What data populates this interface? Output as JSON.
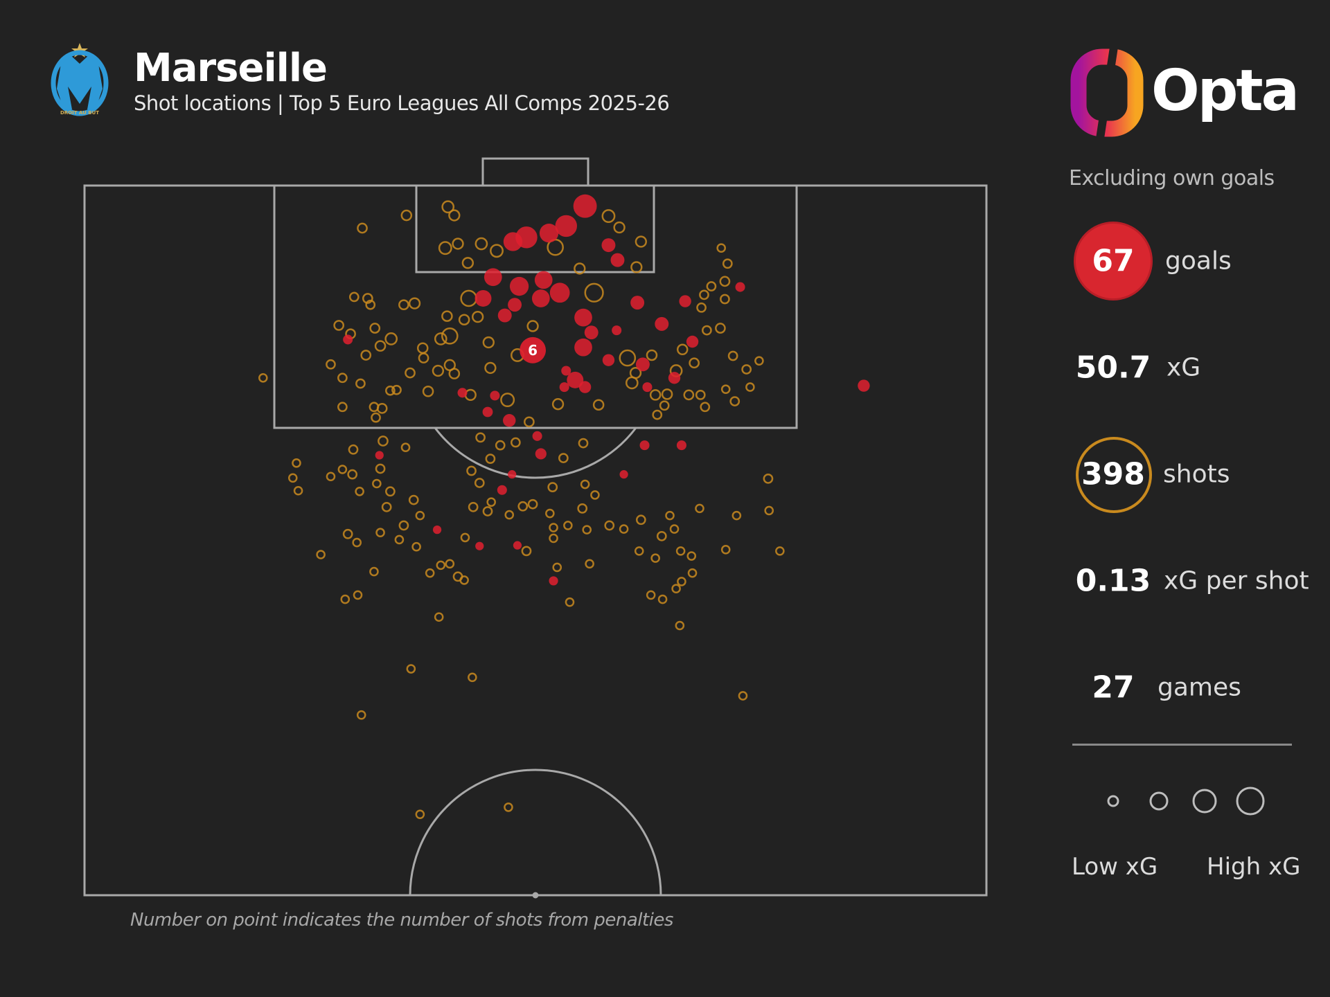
{
  "header": {
    "team": "Marseille",
    "subtitle": "Shot locations | Top 5 Euro Leagues All Comps 2025-26",
    "crest_motto": "DROIT AU BUT",
    "brand": "Opta"
  },
  "panel": {
    "note": "Excluding own goals",
    "stats": {
      "goals": {
        "value": "67",
        "label": "goals"
      },
      "xg": {
        "value": "50.7",
        "label": "xG"
      },
      "shots": {
        "value": "398",
        "label": "shots"
      },
      "xg_per_shot": {
        "value": "0.13",
        "label": "xG per shot"
      },
      "games": {
        "value": "27",
        "label": "games"
      }
    },
    "legend": {
      "low": "Low xG",
      "high": "High xG"
    }
  },
  "footnote": "Number on point indicates the number of shots from penalties",
  "colors": {
    "background": "#222222",
    "goal": "#e0202f",
    "shot": "#c98a1e",
    "lines": "#a9a9a9"
  },
  "chart_data": {
    "type": "scatter",
    "title": "Marseille shot locations",
    "coordinate_system": "half pitch, x = % of pitch width from left touchline, y = % of half-length from goal line",
    "xlim": [
      0,
      100
    ],
    "ylim": [
      0,
      100
    ],
    "size_encodes": "xG",
    "penalty": {
      "x": 49.7,
      "y": 23.2,
      "xg": 0.78,
      "count": "6",
      "outcome": "goal"
    },
    "goals": [
      [
        55.5,
        2.9,
        0.6
      ],
      [
        53.4,
        5.7,
        0.5
      ],
      [
        49.0,
        7.3,
        0.5
      ],
      [
        47.5,
        7.9,
        0.35
      ],
      [
        51.5,
        6.7,
        0.35
      ],
      [
        58.1,
        8.4,
        0.15
      ],
      [
        59.1,
        10.5,
        0.15
      ],
      [
        45.3,
        12.9,
        0.3
      ],
      [
        48.2,
        14.2,
        0.35
      ],
      [
        50.9,
        13.3,
        0.3
      ],
      [
        52.7,
        15.1,
        0.4
      ],
      [
        50.6,
        15.9,
        0.3
      ],
      [
        44.2,
        15.9,
        0.25
      ],
      [
        47.7,
        16.8,
        0.15
      ],
      [
        46.6,
        18.3,
        0.15
      ],
      [
        61.3,
        16.5,
        0.15
      ],
      [
        66.6,
        16.3,
        0.1
      ],
      [
        72.7,
        14.3,
        0.05
      ],
      [
        64.0,
        19.5,
        0.15
      ],
      [
        55.3,
        18.6,
        0.3
      ],
      [
        56.2,
        20.7,
        0.15
      ],
      [
        59.0,
        20.4,
        0.05
      ],
      [
        29.2,
        21.7,
        0.05
      ],
      [
        67.4,
        22.0,
        0.1
      ],
      [
        55.3,
        22.8,
        0.3
      ],
      [
        58.1,
        24.6,
        0.1
      ],
      [
        61.9,
        25.2,
        0.15
      ],
      [
        53.4,
        26.1,
        0.05
      ],
      [
        65.4,
        27.1,
        0.1
      ],
      [
        54.4,
        27.4,
        0.25
      ],
      [
        53.2,
        28.4,
        0.05
      ],
      [
        55.5,
        28.4,
        0.1
      ],
      [
        62.4,
        28.4,
        0.05
      ],
      [
        41.9,
        29.2,
        0.05
      ],
      [
        45.5,
        29.6,
        0.05
      ],
      [
        44.7,
        31.9,
        0.06
      ],
      [
        47.1,
        33.1,
        0.12
      ],
      [
        50.2,
        35.3,
        0.05
      ],
      [
        50.6,
        37.8,
        0.08
      ],
      [
        62.1,
        36.6,
        0.05
      ],
      [
        66.2,
        36.6,
        0.05
      ],
      [
        32.7,
        38.0,
        0.03
      ],
      [
        47.4,
        40.7,
        0.03
      ],
      [
        59.8,
        40.7,
        0.03
      ],
      [
        46.3,
        42.9,
        0.05
      ],
      [
        39.1,
        48.5,
        0.03
      ],
      [
        43.8,
        50.8,
        0.03
      ],
      [
        48.0,
        50.7,
        0.03
      ],
      [
        52.0,
        55.7,
        0.04
      ],
      [
        86.4,
        28.2,
        0.1
      ]
    ],
    "shots": [
      [
        30.8,
        6.0,
        0.04
      ],
      [
        35.7,
        4.2,
        0.05
      ],
      [
        40.3,
        3.0,
        0.08
      ],
      [
        41.0,
        4.2,
        0.06
      ],
      [
        40.0,
        8.8,
        0.1
      ],
      [
        41.4,
        8.2,
        0.06
      ],
      [
        42.5,
        10.9,
        0.06
      ],
      [
        44.0,
        8.2,
        0.08
      ],
      [
        45.7,
        9.2,
        0.1
      ],
      [
        52.2,
        8.7,
        0.2
      ],
      [
        56.5,
        15.1,
        0.3
      ],
      [
        58.1,
        4.3,
        0.1
      ],
      [
        59.3,
        5.9,
        0.06
      ],
      [
        61.7,
        7.9,
        0.06
      ],
      [
        61.2,
        11.5,
        0.06
      ],
      [
        54.9,
        11.7,
        0.06
      ],
      [
        42.6,
        15.9,
        0.2
      ],
      [
        40.5,
        21.2,
        0.2
      ],
      [
        39.5,
        21.6,
        0.08
      ],
      [
        36.6,
        16.6,
        0.06
      ],
      [
        35.4,
        16.8,
        0.04
      ],
      [
        31.4,
        15.9,
        0.04
      ],
      [
        29.9,
        15.7,
        0.03
      ],
      [
        31.7,
        16.8,
        0.03
      ],
      [
        28.2,
        19.7,
        0.04
      ],
      [
        29.5,
        20.9,
        0.04
      ],
      [
        32.2,
        20.1,
        0.04
      ],
      [
        34.0,
        21.6,
        0.08
      ],
      [
        32.8,
        22.6,
        0.05
      ],
      [
        31.2,
        23.9,
        0.04
      ],
      [
        27.3,
        25.2,
        0.03
      ],
      [
        28.6,
        27.1,
        0.03
      ],
      [
        30.6,
        27.9,
        0.03
      ],
      [
        33.9,
        28.9,
        0.03
      ],
      [
        34.6,
        28.8,
        0.03
      ],
      [
        28.6,
        31.2,
        0.03
      ],
      [
        32.1,
        31.2,
        0.03
      ],
      [
        33.0,
        31.4,
        0.04
      ],
      [
        32.3,
        32.7,
        0.03
      ],
      [
        36.1,
        26.4,
        0.04
      ],
      [
        37.5,
        22.9,
        0.05
      ],
      [
        37.6,
        24.3,
        0.04
      ],
      [
        38.1,
        29.0,
        0.05
      ],
      [
        39.2,
        26.1,
        0.06
      ],
      [
        40.5,
        25.3,
        0.06
      ],
      [
        41.0,
        26.5,
        0.05
      ],
      [
        40.2,
        18.4,
        0.05
      ],
      [
        42.1,
        18.9,
        0.05
      ],
      [
        43.6,
        18.5,
        0.06
      ],
      [
        44.8,
        22.1,
        0.06
      ],
      [
        45.0,
        25.7,
        0.06
      ],
      [
        42.8,
        29.5,
        0.06
      ],
      [
        46.9,
        30.2,
        0.12
      ],
      [
        48.0,
        23.9,
        0.1
      ],
      [
        49.7,
        19.8,
        0.06
      ],
      [
        52.5,
        30.8,
        0.06
      ],
      [
        57.0,
        30.9,
        0.05
      ],
      [
        60.2,
        24.3,
        0.2
      ],
      [
        60.7,
        27.8,
        0.08
      ],
      [
        61.1,
        26.4,
        0.06
      ],
      [
        62.9,
        23.9,
        0.05
      ],
      [
        63.3,
        29.5,
        0.05
      ],
      [
        64.6,
        29.4,
        0.05
      ],
      [
        65.6,
        26.1,
        0.08
      ],
      [
        66.3,
        23.1,
        0.05
      ],
      [
        67.6,
        25.0,
        0.04
      ],
      [
        67.0,
        29.5,
        0.04
      ],
      [
        68.3,
        29.5,
        0.03
      ],
      [
        68.8,
        31.2,
        0.03
      ],
      [
        70.5,
        20.1,
        0.04
      ],
      [
        69.0,
        20.4,
        0.03
      ],
      [
        68.4,
        17.2,
        0.03
      ],
      [
        68.7,
        15.4,
        0.03
      ],
      [
        69.5,
        14.2,
        0.03
      ],
      [
        71.0,
        16.0,
        0.03
      ],
      [
        71.0,
        13.5,
        0.04
      ],
      [
        71.3,
        11.0,
        0.03
      ],
      [
        70.6,
        8.8,
        0.02
      ],
      [
        71.9,
        24.0,
        0.03
      ],
      [
        73.4,
        25.9,
        0.03
      ],
      [
        74.8,
        24.7,
        0.02
      ],
      [
        73.8,
        28.4,
        0.02
      ],
      [
        72.1,
        30.4,
        0.03
      ],
      [
        71.1,
        28.7,
        0.02
      ],
      [
        63.5,
        32.3,
        0.03
      ],
      [
        64.3,
        31.0,
        0.03
      ],
      [
        19.8,
        27.1,
        0.02
      ],
      [
        29.8,
        37.2,
        0.03
      ],
      [
        33.1,
        36.0,
        0.04
      ],
      [
        35.6,
        36.9,
        0.02
      ],
      [
        23.5,
        39.1,
        0.02
      ],
      [
        23.1,
        41.2,
        0.02
      ],
      [
        23.7,
        43.0,
        0.02
      ],
      [
        27.3,
        41.0,
        0.02
      ],
      [
        28.6,
        40.0,
        0.02
      ],
      [
        29.7,
        40.7,
        0.03
      ],
      [
        30.5,
        43.1,
        0.02
      ],
      [
        32.8,
        39.9,
        0.03
      ],
      [
        32.4,
        42.0,
        0.02
      ],
      [
        33.9,
        43.1,
        0.03
      ],
      [
        33.5,
        45.3,
        0.03
      ],
      [
        36.5,
        44.3,
        0.03
      ],
      [
        37.2,
        46.5,
        0.02
      ],
      [
        35.4,
        47.9,
        0.03
      ],
      [
        34.9,
        49.9,
        0.02
      ],
      [
        36.8,
        50.9,
        0.02
      ],
      [
        32.8,
        48.9,
        0.02
      ],
      [
        29.2,
        49.1,
        0.03
      ],
      [
        30.2,
        50.3,
        0.02
      ],
      [
        26.2,
        52.0,
        0.02
      ],
      [
        32.1,
        54.4,
        0.02
      ],
      [
        28.9,
        58.3,
        0.02
      ],
      [
        30.3,
        57.7,
        0.02
      ],
      [
        39.3,
        60.8,
        0.02
      ],
      [
        38.3,
        54.6,
        0.02
      ],
      [
        39.5,
        53.5,
        0.02
      ],
      [
        40.5,
        53.3,
        0.02
      ],
      [
        41.4,
        55.1,
        0.03
      ],
      [
        42.1,
        55.6,
        0.02
      ],
      [
        42.2,
        49.6,
        0.02
      ],
      [
        43.1,
        45.3,
        0.03
      ],
      [
        44.7,
        45.9,
        0.03
      ],
      [
        45.1,
        44.6,
        0.02
      ],
      [
        47.1,
        46.4,
        0.02
      ],
      [
        48.6,
        45.2,
        0.03
      ],
      [
        49.7,
        44.9,
        0.03
      ],
      [
        43.8,
        41.9,
        0.03
      ],
      [
        42.9,
        40.2,
        0.03
      ],
      [
        45.0,
        38.5,
        0.03
      ],
      [
        43.9,
        35.5,
        0.03
      ],
      [
        46.1,
        36.6,
        0.03
      ],
      [
        47.8,
        36.2,
        0.03
      ],
      [
        49.3,
        33.3,
        0.04
      ],
      [
        53.1,
        38.4,
        0.03
      ],
      [
        55.3,
        36.3,
        0.03
      ],
      [
        55.5,
        42.1,
        0.02
      ],
      [
        56.6,
        43.6,
        0.02
      ],
      [
        55.2,
        45.5,
        0.03
      ],
      [
        51.9,
        42.5,
        0.03
      ],
      [
        51.6,
        46.2,
        0.02
      ],
      [
        52.0,
        48.2,
        0.02
      ],
      [
        52.0,
        49.7,
        0.02
      ],
      [
        53.6,
        47.9,
        0.02
      ],
      [
        55.7,
        48.5,
        0.02
      ],
      [
        58.2,
        47.9,
        0.03
      ],
      [
        59.8,
        48.4,
        0.02
      ],
      [
        61.7,
        47.1,
        0.03
      ],
      [
        64.9,
        46.5,
        0.02
      ],
      [
        64.0,
        49.4,
        0.03
      ],
      [
        65.4,
        48.4,
        0.02
      ],
      [
        68.2,
        45.5,
        0.02
      ],
      [
        72.3,
        46.5,
        0.02
      ],
      [
        75.9,
        45.8,
        0.02
      ],
      [
        75.8,
        41.3,
        0.03
      ],
      [
        77.1,
        51.5,
        0.02
      ],
      [
        71.1,
        51.3,
        0.02
      ],
      [
        66.1,
        51.5,
        0.02
      ],
      [
        67.3,
        52.2,
        0.02
      ],
      [
        67.4,
        54.6,
        0.02
      ],
      [
        66.2,
        55.8,
        0.02
      ],
      [
        65.6,
        56.8,
        0.02
      ],
      [
        64.1,
        58.3,
        0.02
      ],
      [
        62.8,
        57.7,
        0.02
      ],
      [
        63.3,
        52.5,
        0.02
      ],
      [
        61.5,
        51.5,
        0.02
      ],
      [
        56.0,
        53.3,
        0.02
      ],
      [
        52.4,
        53.8,
        0.02
      ],
      [
        53.8,
        58.7,
        0.02
      ],
      [
        49.0,
        51.5,
        0.03
      ],
      [
        66.0,
        62.0,
        0.02
      ],
      [
        36.2,
        68.1,
        0.02
      ],
      [
        43.0,
        69.3,
        0.02
      ],
      [
        30.7,
        74.6,
        0.02
      ],
      [
        73.0,
        71.9,
        0.02
      ],
      [
        37.2,
        88.6,
        0.02
      ],
      [
        47.0,
        87.6,
        0.02
      ]
    ]
  }
}
